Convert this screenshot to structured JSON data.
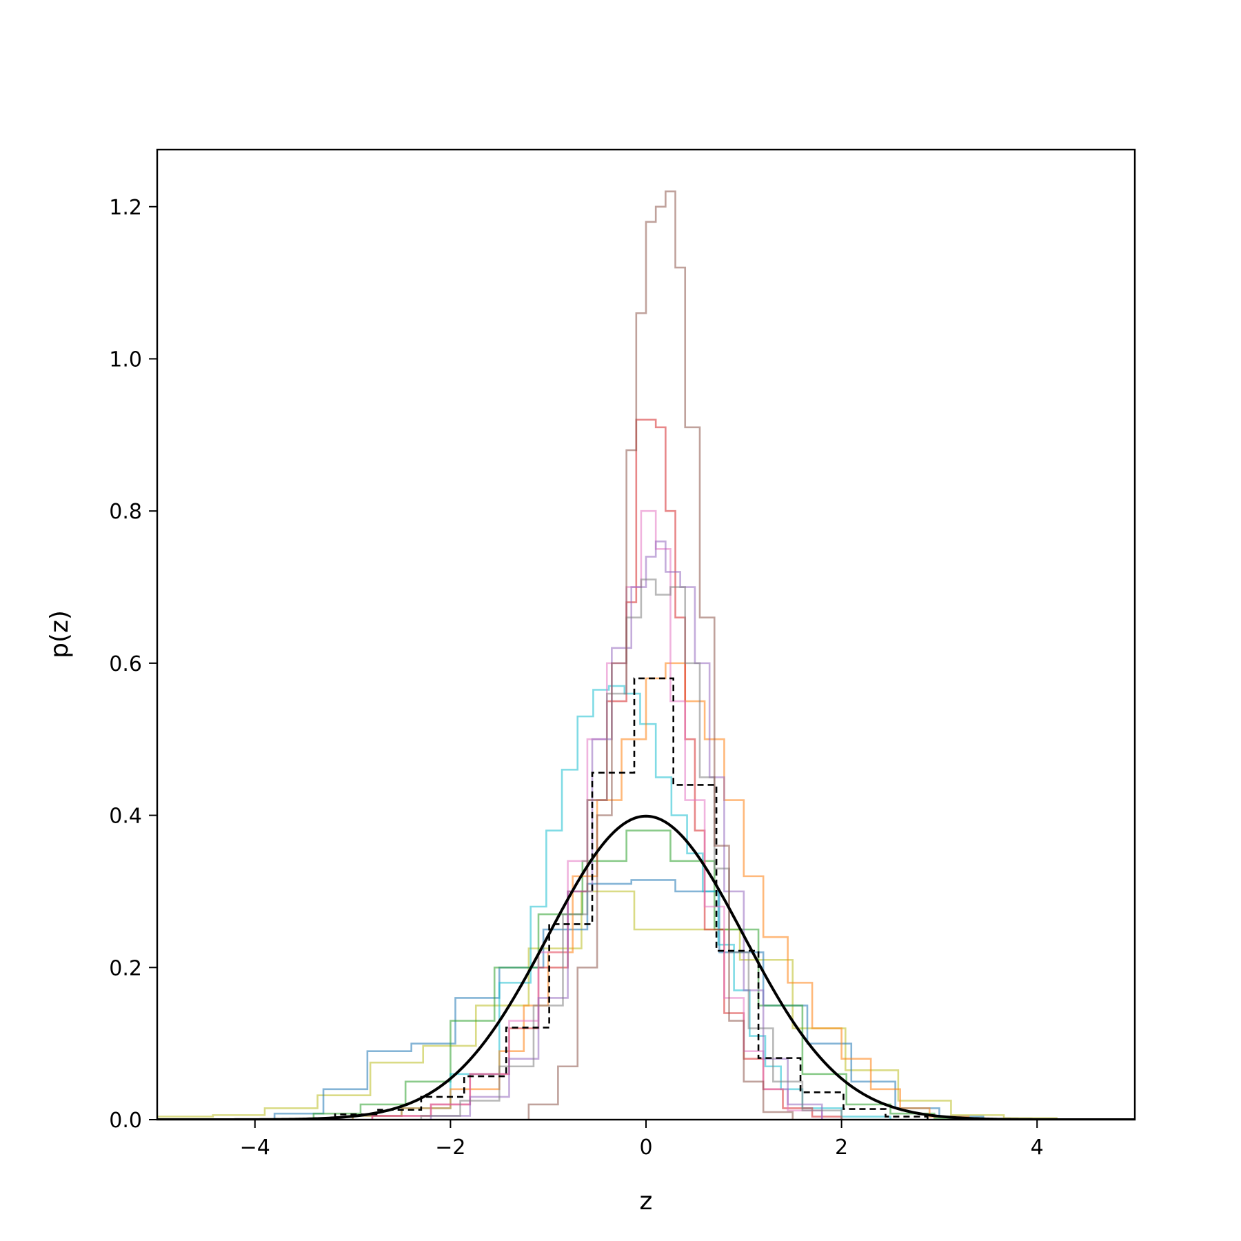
{
  "chart_data": {
    "type": "line",
    "title": "",
    "xlabel": "z",
    "ylabel": "p(z)",
    "xlim": [
      -5,
      5
    ],
    "ylim": [
      0,
      1.275
    ],
    "xticks": [
      -4,
      -2,
      0,
      2,
      4
    ],
    "xtick_labels": [
      "−4",
      "−2",
      "0",
      "2",
      "4"
    ],
    "yticks": [
      0.0,
      0.2,
      0.4,
      0.6,
      0.8,
      1.0,
      1.2
    ],
    "ytick_labels": [
      "0.0",
      "0.2",
      "0.4",
      "0.6",
      "0.8",
      "1.0",
      "1.2"
    ],
    "grid": false,
    "legend": "none",
    "series": [
      {
        "style": "step",
        "color": "#bcbd22",
        "opacity": 0.55,
        "edges": [
          -5.0,
          -4.43,
          -3.9,
          -3.36,
          -2.82,
          -2.28,
          -1.74,
          -1.2,
          -0.66,
          -0.12,
          0.42,
          0.96,
          1.5,
          2.04,
          2.58,
          3.12,
          3.66,
          4.2
        ],
        "values": [
          0.004,
          0.006,
          0.015,
          0.032,
          0.075,
          0.097,
          0.15,
          0.225,
          0.3,
          0.25,
          0.25,
          0.21,
          0.12,
          0.065,
          0.025,
          0.006,
          0.002
        ]
      },
      {
        "style": "step",
        "color": "#1f77b4",
        "opacity": 0.55,
        "edges": [
          -3.8,
          -3.3,
          -2.85,
          -2.4,
          -1.95,
          -1.5,
          -1.05,
          -0.6,
          -0.15,
          0.3,
          0.75,
          1.2,
          1.65,
          2.1,
          2.55,
          3.0,
          3.45
        ],
        "values": [
          0.008,
          0.04,
          0.09,
          0.1,
          0.16,
          0.2,
          0.25,
          0.31,
          0.315,
          0.3,
          0.22,
          0.15,
          0.1,
          0.05,
          0.015,
          0.004
        ]
      },
      {
        "style": "step",
        "color": "#2ca02c",
        "opacity": 0.55,
        "edges": [
          -3.4,
          -2.92,
          -2.46,
          -2.0,
          -1.55,
          -1.1,
          -0.65,
          -0.2,
          0.25,
          0.7,
          1.15,
          1.6,
          2.05,
          2.5,
          2.95,
          3.4
        ],
        "values": [
          0.008,
          0.02,
          0.05,
          0.13,
          0.2,
          0.27,
          0.34,
          0.38,
          0.34,
          0.25,
          0.15,
          0.06,
          0.02,
          0.008,
          0.002
        ]
      },
      {
        "style": "step",
        "color": "#17becf",
        "opacity": 0.55,
        "edges": [
          -3.0,
          -2.5,
          -2.0,
          -1.5,
          -1.18,
          -1.02,
          -0.86,
          -0.7,
          -0.54,
          -0.38,
          -0.22,
          -0.06,
          0.1,
          0.26,
          0.42,
          0.58,
          0.74,
          0.9,
          1.06,
          1.22,
          1.38,
          1.6,
          2.0,
          2.5
        ],
        "values": [
          0.005,
          0.015,
          0.06,
          0.18,
          0.28,
          0.38,
          0.46,
          0.53,
          0.565,
          0.57,
          0.56,
          0.52,
          0.45,
          0.4,
          0.35,
          0.3,
          0.23,
          0.17,
          0.11,
          0.07,
          0.04,
          0.015,
          0.004
        ]
      },
      {
        "style": "step",
        "color": "#ff7f0e",
        "opacity": 0.55,
        "edges": [
          -3.0,
          -2.5,
          -2.0,
          -1.5,
          -1.25,
          -1.0,
          -0.75,
          -0.5,
          -0.25,
          0.0,
          0.2,
          0.4,
          0.6,
          0.8,
          1.0,
          1.2,
          1.45,
          1.7,
          2.0,
          2.3,
          2.6,
          2.9,
          3.3
        ],
        "values": [
          0.005,
          0.015,
          0.04,
          0.09,
          0.15,
          0.22,
          0.32,
          0.42,
          0.5,
          0.58,
          0.6,
          0.55,
          0.5,
          0.42,
          0.32,
          0.24,
          0.18,
          0.12,
          0.08,
          0.04,
          0.015,
          0.004
        ]
      },
      {
        "style": "step",
        "color": "#d62728",
        "opacity": 0.55,
        "edges": [
          -2.8,
          -2.2,
          -1.8,
          -1.4,
          -1.1,
          -0.8,
          -0.6,
          -0.4,
          -0.2,
          -0.1,
          0.0,
          0.1,
          0.2,
          0.3,
          0.4,
          0.5,
          0.6,
          0.8,
          1.0,
          1.2,
          1.4,
          1.7,
          2.0
        ],
        "values": [
          0.005,
          0.02,
          0.06,
          0.12,
          0.2,
          0.3,
          0.42,
          0.55,
          0.68,
          0.92,
          0.92,
          0.91,
          0.8,
          0.66,
          0.5,
          0.38,
          0.25,
          0.14,
          0.08,
          0.04,
          0.015,
          0.004
        ]
      },
      {
        "style": "step",
        "color": "#e377c2",
        "opacity": 0.55,
        "edges": [
          -2.8,
          -2.2,
          -1.8,
          -1.4,
          -1.1,
          -0.8,
          -0.6,
          -0.4,
          -0.2,
          -0.05,
          0.1,
          0.25,
          0.4,
          0.6,
          0.8,
          1.0,
          1.2,
          1.45,
          1.8
        ],
        "values": [
          0.005,
          0.02,
          0.06,
          0.13,
          0.22,
          0.34,
          0.5,
          0.6,
          0.7,
          0.8,
          0.75,
          0.55,
          0.42,
          0.28,
          0.16,
          0.09,
          0.04,
          0.012
        ]
      },
      {
        "style": "step",
        "color": "#9467bd",
        "opacity": 0.55,
        "edges": [
          -2.2,
          -1.8,
          -1.4,
          -1.1,
          -0.8,
          -0.55,
          -0.35,
          -0.15,
          0.0,
          0.1,
          0.2,
          0.35,
          0.5,
          0.65,
          0.8,
          1.0,
          1.2,
          1.45,
          1.8
        ],
        "values": [
          0.005,
          0.03,
          0.08,
          0.16,
          0.3,
          0.5,
          0.62,
          0.7,
          0.74,
          0.76,
          0.72,
          0.7,
          0.6,
          0.45,
          0.3,
          0.17,
          0.08,
          0.02
        ]
      },
      {
        "style": "step",
        "color": "#7f7f7f",
        "opacity": 0.55,
        "edges": [
          -2.3,
          -1.9,
          -1.5,
          -1.15,
          -0.85,
          -0.6,
          -0.4,
          -0.2,
          -0.05,
          0.1,
          0.25,
          0.4,
          0.55,
          0.7,
          0.85,
          1.05,
          1.3,
          1.6,
          2.0
        ],
        "values": [
          0.005,
          0.025,
          0.07,
          0.15,
          0.27,
          0.42,
          0.56,
          0.66,
          0.71,
          0.69,
          0.7,
          0.6,
          0.45,
          0.33,
          0.22,
          0.12,
          0.05,
          0.012
        ]
      },
      {
        "style": "step",
        "color": "#8c564b",
        "opacity": 0.55,
        "edges": [
          -1.2,
          -0.9,
          -0.7,
          -0.5,
          -0.35,
          -0.2,
          -0.1,
          0.0,
          0.1,
          0.2,
          0.3,
          0.4,
          0.55,
          0.7,
          0.85,
          1.0,
          1.2,
          1.5
        ],
        "values": [
          0.02,
          0.07,
          0.2,
          0.4,
          0.6,
          0.88,
          1.06,
          1.18,
          1.2,
          1.22,
          1.12,
          0.91,
          0.66,
          0.36,
          0.13,
          0.05,
          0.01
        ]
      },
      {
        "style": "step",
        "color": "#000000",
        "opacity": 1.0,
        "dashed": true,
        "edges": [
          -3.18,
          -2.74,
          -2.3,
          -1.86,
          -1.43,
          -0.99,
          -0.55,
          -0.12,
          0.28,
          0.72,
          1.15,
          1.58,
          2.02,
          2.45,
          2.88
        ],
        "values": [
          0.007,
          0.013,
          0.03,
          0.057,
          0.121,
          0.257,
          0.456,
          0.58,
          0.44,
          0.222,
          0.081,
          0.036,
          0.014,
          0.004
        ]
      },
      {
        "style": "normal-pdf",
        "color": "#000000",
        "opacity": 1.0,
        "mean": 0,
        "std": 1,
        "samples": [
          {
            "x": -4,
            "y": 0.0001
          },
          {
            "x": -3,
            "y": 0.0044
          },
          {
            "x": -2,
            "y": 0.054
          },
          {
            "x": -1,
            "y": 0.242
          },
          {
            "x": 0,
            "y": 0.399
          },
          {
            "x": 1,
            "y": 0.242
          },
          {
            "x": 2,
            "y": 0.054
          },
          {
            "x": 3,
            "y": 0.0044
          },
          {
            "x": 4,
            "y": 0.0001
          }
        ]
      }
    ]
  }
}
